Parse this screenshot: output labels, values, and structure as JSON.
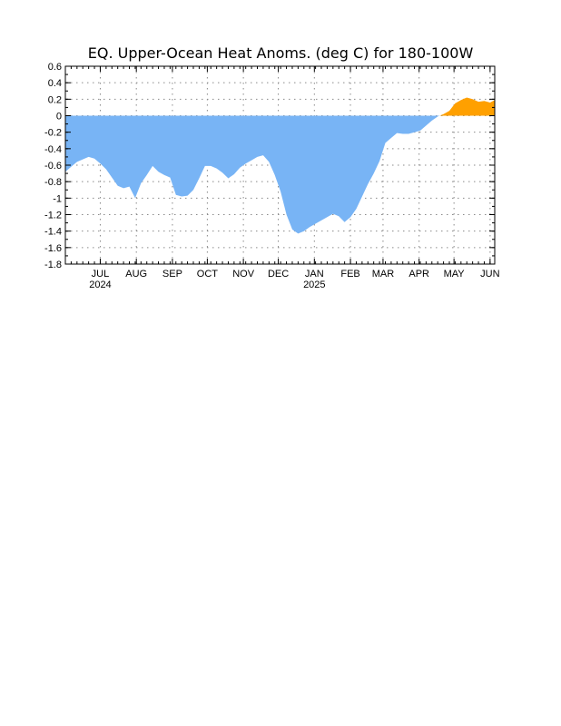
{
  "chart_data": {
    "type": "area",
    "title": "EQ. Upper-Ocean Heat Anoms. (deg C) for 180-100W",
    "xlabel": "",
    "ylabel": "",
    "ylim": [
      -1.8,
      0.6
    ],
    "yticks": [
      "0.6",
      "0.4",
      "0.2",
      "0",
      "-0.2",
      "-0.4",
      "-0.6",
      "-0.8",
      "-1",
      "-1.2",
      "-1.4",
      "-1.6",
      "-1.8"
    ],
    "xlim": [
      "2024-06-01",
      "2025-06-05"
    ],
    "months": [
      {
        "label": "JUL",
        "date": "2024-07-01",
        "year": "2024"
      },
      {
        "label": "AUG",
        "date": "2024-08-01"
      },
      {
        "label": "SEP",
        "date": "2024-09-01"
      },
      {
        "label": "OCT",
        "date": "2024-10-01"
      },
      {
        "label": "NOV",
        "date": "2024-11-01"
      },
      {
        "label": "DEC",
        "date": "2024-12-01"
      },
      {
        "label": "JAN",
        "date": "2025-01-01",
        "year": "2025"
      },
      {
        "label": "FEB",
        "date": "2025-02-01"
      },
      {
        "label": "MAR",
        "date": "2025-03-01"
      },
      {
        "label": "APR",
        "date": "2025-04-01"
      },
      {
        "label": "MAY",
        "date": "2025-05-01"
      },
      {
        "label": "JUN",
        "date": "2025-06-01"
      }
    ],
    "grid": true,
    "colors": {
      "positive": "#ffa000",
      "negative": "#78b4f5"
    },
    "x": [
      "2024-06-01",
      "2024-06-06",
      "2024-06-11",
      "2024-06-16",
      "2024-06-21",
      "2024-06-26",
      "2024-07-01",
      "2024-07-06",
      "2024-07-11",
      "2024-07-16",
      "2024-07-21",
      "2024-07-26",
      "2024-07-31",
      "2024-08-05",
      "2024-08-10",
      "2024-08-15",
      "2024-08-20",
      "2024-08-25",
      "2024-08-30",
      "2024-09-04",
      "2024-09-09",
      "2024-09-14",
      "2024-09-19",
      "2024-09-24",
      "2024-09-29",
      "2024-10-04",
      "2024-10-09",
      "2024-10-14",
      "2024-10-19",
      "2024-10-24",
      "2024-10-29",
      "2024-11-03",
      "2024-11-08",
      "2024-11-13",
      "2024-11-18",
      "2024-11-23",
      "2024-11-28",
      "2024-12-03",
      "2024-12-08",
      "2024-12-13",
      "2024-12-18",
      "2024-12-23",
      "2024-12-28",
      "2025-01-02",
      "2025-01-07",
      "2025-01-12",
      "2025-01-17",
      "2025-01-22",
      "2025-01-27",
      "2025-02-01",
      "2025-02-06",
      "2025-02-11",
      "2025-02-16",
      "2025-02-21",
      "2025-02-26",
      "2025-03-03",
      "2025-03-08",
      "2025-03-13",
      "2025-03-18",
      "2025-03-23",
      "2025-03-28",
      "2025-04-02",
      "2025-04-07",
      "2025-04-12",
      "2025-04-17",
      "2025-04-22",
      "2025-04-27",
      "2025-05-02",
      "2025-05-07",
      "2025-05-12",
      "2025-05-17",
      "2025-05-22",
      "2025-05-27",
      "2025-06-01",
      "2025-06-05"
    ],
    "values": [
      -0.68,
      -0.62,
      -0.56,
      -0.53,
      -0.5,
      -0.52,
      -0.58,
      -0.65,
      -0.75,
      -0.85,
      -0.88,
      -0.86,
      -1.0,
      -0.82,
      -0.72,
      -0.61,
      -0.68,
      -0.72,
      -0.75,
      -0.96,
      -0.98,
      -0.97,
      -0.9,
      -0.76,
      -0.61,
      -0.61,
      -0.64,
      -0.69,
      -0.76,
      -0.71,
      -0.63,
      -0.58,
      -0.54,
      -0.5,
      -0.48,
      -0.56,
      -0.72,
      -0.92,
      -1.2,
      -1.38,
      -1.43,
      -1.4,
      -1.35,
      -1.31,
      -1.27,
      -1.23,
      -1.19,
      -1.22,
      -1.29,
      -1.23,
      -1.13,
      -0.98,
      -0.83,
      -0.7,
      -0.55,
      -0.33,
      -0.27,
      -0.21,
      -0.22,
      -0.22,
      -0.2,
      -0.18,
      -0.12,
      -0.06,
      -0.01,
      0.02,
      0.06,
      0.15,
      0.19,
      0.22,
      0.2,
      0.17,
      0.18,
      0.16,
      0.19
    ]
  }
}
